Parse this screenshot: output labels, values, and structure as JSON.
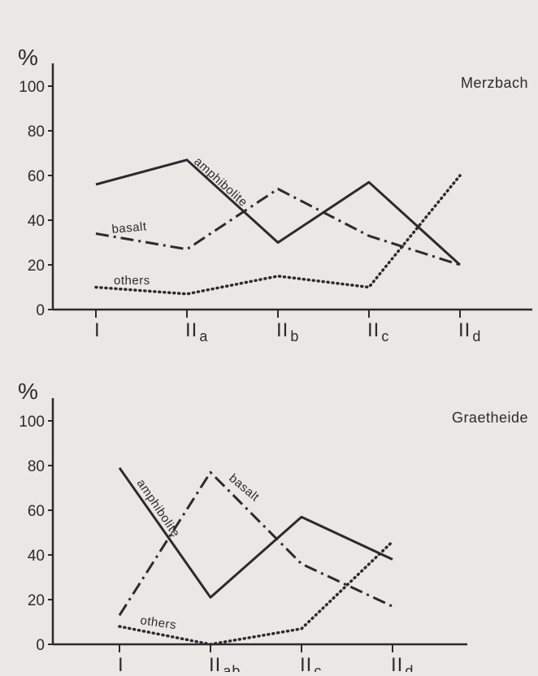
{
  "chart_data": [
    {
      "type": "line",
      "title": "Merzbach",
      "ylabel": "%",
      "ylim": [
        0,
        100
      ],
      "yticks": [
        0,
        20,
        40,
        60,
        80,
        100
      ],
      "categories": [
        {
          "main": "I",
          "sub": ""
        },
        {
          "main": "II",
          "sub": "a"
        },
        {
          "main": "II",
          "sub": "b"
        },
        {
          "main": "II",
          "sub": "c"
        },
        {
          "main": "II",
          "sub": "d"
        }
      ],
      "series": [
        {
          "name": "amphibolite",
          "style": "solid",
          "values": [
            56,
            67,
            30,
            57,
            20
          ]
        },
        {
          "name": "basalt",
          "style": "dashdot",
          "values": [
            34,
            27,
            54,
            33,
            20
          ]
        },
        {
          "name": "others",
          "style": "dotted",
          "values": [
            10,
            7,
            15,
            10,
            60
          ]
        }
      ]
    },
    {
      "type": "line",
      "title": "Graetheide",
      "ylabel": "%",
      "ylim": [
        0,
        100
      ],
      "yticks": [
        0,
        20,
        40,
        60,
        80,
        100
      ],
      "categories": [
        {
          "main": "I",
          "sub": ""
        },
        {
          "main": "II",
          "sub": "ab"
        },
        {
          "main": "II",
          "sub": "c"
        },
        {
          "main": "II",
          "sub": "d"
        }
      ],
      "series": [
        {
          "name": "amphibolite",
          "style": "solid",
          "values": [
            79,
            21,
            57,
            38
          ]
        },
        {
          "name": "basalt",
          "style": "dashdot",
          "values": [
            13,
            77,
            36,
            17
          ]
        },
        {
          "name": "others",
          "style": "dotted",
          "values": [
            8,
            0,
            7,
            46
          ]
        }
      ]
    }
  ]
}
